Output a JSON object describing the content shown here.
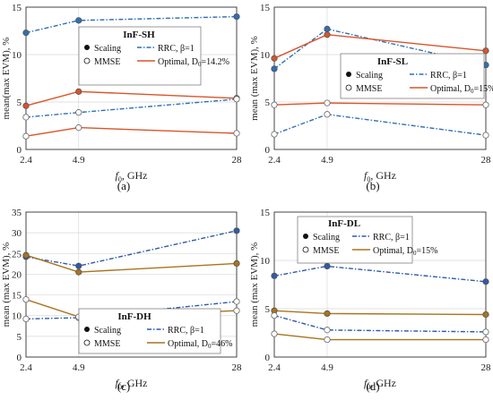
{
  "chart_data": [
    {
      "panel": "(a)",
      "type": "line",
      "categories": [
        "2.4",
        "4.9",
        "28"
      ],
      "xlabel_main": "f",
      "xlabel_sub": "0",
      "xlabel_rest": ", GHz",
      "ylabel": "mean(max EVM), %",
      "ylim": [
        0,
        15
      ],
      "yticks": [
        "0",
        "5",
        "10",
        "15"
      ],
      "legend_title": "InF-SH",
      "legend_scaling": "Scaling",
      "legend_mmse": "MMSE",
      "legend_rrc": "RRC, β=1",
      "legend_opt_pre": "Optimal, D",
      "legend_opt_sub": "0",
      "legend_opt_post": "=14.2%",
      "series": [
        {
          "family": "rrc",
          "marker": "filled",
          "values": [
            12.3,
            13.6,
            14.0
          ]
        },
        {
          "family": "optimal",
          "marker": "filled",
          "values": [
            4.6,
            6.1,
            5.4
          ]
        },
        {
          "family": "rrc",
          "marker": "open",
          "values": [
            3.4,
            3.9,
            5.3
          ]
        },
        {
          "family": "optimal",
          "marker": "open",
          "values": [
            1.4,
            2.3,
            1.7
          ]
        }
      ],
      "colors": {
        "rrc": "#2f6fb5",
        "optimal": "#d9542b"
      }
    },
    {
      "panel": "(b)",
      "type": "line",
      "categories": [
        "2.4",
        "4.9",
        "28"
      ],
      "xlabel_main": "f",
      "xlabel_sub": "0",
      "xlabel_rest": ", GHz",
      "ylabel": "mean (max EVM), %",
      "ylim": [
        0,
        15
      ],
      "yticks": [
        "0",
        "5",
        "10",
        "15"
      ],
      "legend_title": "InF-SL",
      "legend_scaling": "Scaling",
      "legend_mmse": "MMSE",
      "legend_rrc": "RRC, β=1",
      "legend_opt_pre": "Optimal, D",
      "legend_opt_sub": "0",
      "legend_opt_post": "=15%",
      "series": [
        {
          "family": "rrc",
          "marker": "filled",
          "values": [
            8.5,
            12.7,
            8.9
          ]
        },
        {
          "family": "optimal",
          "marker": "filled",
          "values": [
            9.6,
            12.1,
            10.4
          ]
        },
        {
          "family": "rrc",
          "marker": "open",
          "values": [
            1.6,
            3.7,
            1.5
          ]
        },
        {
          "family": "optimal",
          "marker": "open",
          "values": [
            4.7,
            4.9,
            4.7
          ]
        }
      ],
      "colors": {
        "rrc": "#2f6fb5",
        "optimal": "#d9542b"
      }
    },
    {
      "panel": "(c)",
      "type": "line",
      "categories": [
        "2.4",
        "4.9",
        "28"
      ],
      "xlabel_main": "f",
      "xlabel_sub": "0",
      "xlabel_rest": ", GHz",
      "ylabel": "mean (max EVM), %",
      "ylim": [
        0,
        35
      ],
      "yticks": [
        "0",
        "5",
        "10",
        "15",
        "20",
        "25",
        "30",
        "35"
      ],
      "legend_title": "InF-DH",
      "legend_scaling": "Scaling",
      "legend_mmse": "MMSE",
      "legend_rrc": "RRC, β=1",
      "legend_opt_pre": "Optimal, D",
      "legend_opt_sub": "0",
      "legend_opt_post": "=46%",
      "series": [
        {
          "family": "rrc",
          "marker": "filled",
          "values": [
            24.2,
            22.0,
            30.5
          ]
        },
        {
          "family": "optimal",
          "marker": "filled",
          "values": [
            24.6,
            20.5,
            22.6
          ]
        },
        {
          "family": "rrc",
          "marker": "open",
          "values": [
            9.2,
            9.5,
            13.4
          ]
        },
        {
          "family": "optimal",
          "marker": "open",
          "values": [
            13.9,
            9.7,
            11.2
          ]
        }
      ],
      "colors": {
        "rrc": "#2f5aa8",
        "optimal": "#a8741e"
      }
    },
    {
      "panel": "(d)",
      "type": "line",
      "categories": [
        "2.4",
        "4.9",
        "28"
      ],
      "xlabel_main": "f",
      "xlabel_sub": "0",
      "xlabel_rest": ", GHz",
      "ylabel": "mean (max EVM), %",
      "ylim": [
        0,
        15
      ],
      "yticks": [
        "0",
        "5",
        "10",
        "15"
      ],
      "legend_title": "InF-DL",
      "legend_scaling": "Scaling",
      "legend_mmse": "MMSE",
      "legend_rrc": "RRC, β=1",
      "legend_opt_pre": "Optimal, D",
      "legend_opt_sub": "0",
      "legend_opt_post": "=15%",
      "series": [
        {
          "family": "rrc",
          "marker": "filled",
          "values": [
            8.4,
            9.4,
            7.8
          ]
        },
        {
          "family": "optimal",
          "marker": "filled",
          "values": [
            4.8,
            4.5,
            4.4
          ]
        },
        {
          "family": "rrc",
          "marker": "open",
          "values": [
            4.3,
            2.8,
            2.6
          ]
        },
        {
          "family": "optimal",
          "marker": "open",
          "values": [
            2.4,
            1.8,
            1.8
          ]
        }
      ],
      "colors": {
        "rrc": "#2f5aa8",
        "optimal": "#a8741e"
      }
    }
  ]
}
